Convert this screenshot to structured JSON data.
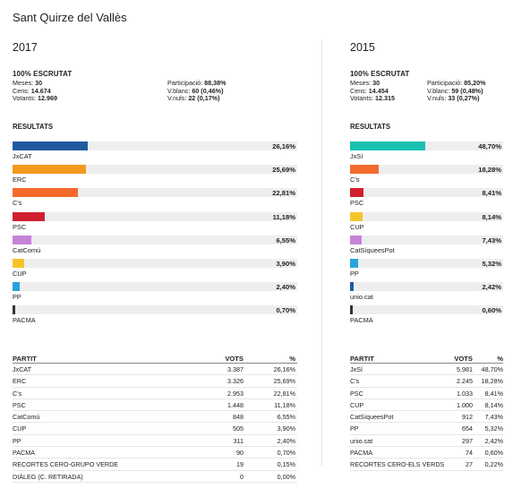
{
  "page": {
    "title": "Sant Quirze del Vallès"
  },
  "elections": [
    {
      "year": "2017",
      "scrutat": "100% ESCRUTAT",
      "stats_left": [
        {
          "label": "Meses: ",
          "value": "30"
        },
        {
          "label": "Cens: ",
          "value": "14.674"
        },
        {
          "label": "Votants: ",
          "value": "12.969"
        }
      ],
      "stats_right": [
        {
          "label": "Participació: ",
          "value": "88,38%"
        },
        {
          "label": "V.blanc: ",
          "value": "60 (0,46%)"
        },
        {
          "label": "V.nuls: ",
          "value": "22 (0,17%)"
        }
      ],
      "results_title": "RESULTATS",
      "bars": [
        {
          "party": "JxCAT",
          "pct": "26,16%",
          "value": 26.16,
          "color": "#1f5aa0"
        },
        {
          "party": "ERC",
          "pct": "25,69%",
          "value": 25.69,
          "color": "#f39a1e"
        },
        {
          "party": "C's",
          "pct": "22,81%",
          "value": 22.81,
          "color": "#f26b2c"
        },
        {
          "party": "PSC",
          "pct": "11,18%",
          "value": 11.18,
          "color": "#d02030"
        },
        {
          "party": "CatComú",
          "pct": "6,55%",
          "value": 6.55,
          "color": "#c583d8"
        },
        {
          "party": "CUP",
          "pct": "3,90%",
          "value": 3.9,
          "color": "#f5c42a"
        },
        {
          "party": "PP",
          "pct": "2,40%",
          "value": 2.4,
          "color": "#27a3dc"
        },
        {
          "party": "PACMA",
          "pct": "0,70%",
          "value": 0.7,
          "color": "#333333"
        }
      ],
      "table": {
        "headers": {
          "party": "PARTIT",
          "votes": "VOTS",
          "pct": "%"
        },
        "rows": [
          {
            "party": "JxCAT",
            "votes": "3.387",
            "pct": "26,16%"
          },
          {
            "party": "ERC",
            "votes": "3.326",
            "pct": "25,69%"
          },
          {
            "party": "C's",
            "votes": "2.953",
            "pct": "22,81%"
          },
          {
            "party": "PSC",
            "votes": "1.448",
            "pct": "11,18%"
          },
          {
            "party": "CatComú",
            "votes": "848",
            "pct": "6,55%"
          },
          {
            "party": "CUP",
            "votes": "505",
            "pct": "3,90%"
          },
          {
            "party": "PP",
            "votes": "311",
            "pct": "2,40%"
          },
          {
            "party": "PACMA",
            "votes": "90",
            "pct": "0,70%"
          },
          {
            "party": "RECORTES CERO-GRUPO VERDE",
            "votes": "19",
            "pct": "0,15%"
          },
          {
            "party": "DIÀLEG (C. RETIRADA)",
            "votes": "0",
            "pct": "0,00%"
          }
        ]
      }
    },
    {
      "year": "2015",
      "scrutat": "100% ESCRUTAT",
      "stats_left": [
        {
          "label": "Meses: ",
          "value": "30"
        },
        {
          "label": "Cens: ",
          "value": "14.454"
        },
        {
          "label": "Votants: ",
          "value": "12.315"
        }
      ],
      "stats_right": [
        {
          "label": "Participació: ",
          "value": "85,20%"
        },
        {
          "label": "V.blanc: ",
          "value": "59 (0,48%)"
        },
        {
          "label": "V.nuls: ",
          "value": "33 (0,27%)"
        }
      ],
      "results_title": "RESULTATS",
      "bars": [
        {
          "party": "JxSí",
          "pct": "48,70%",
          "value": 48.7,
          "color": "#18c0b0"
        },
        {
          "party": "C's",
          "pct": "18,28%",
          "value": 18.28,
          "color": "#f26b2c"
        },
        {
          "party": "PSC",
          "pct": "8,41%",
          "value": 8.41,
          "color": "#d02030"
        },
        {
          "party": "CUP",
          "pct": "8,14%",
          "value": 8.14,
          "color": "#f5c42a"
        },
        {
          "party": "CatSíqueesPot",
          "pct": "7,43%",
          "value": 7.43,
          "color": "#c583d8"
        },
        {
          "party": "PP",
          "pct": "5,32%",
          "value": 5.32,
          "color": "#27a3dc"
        },
        {
          "party": "unio.cat",
          "pct": "2,42%",
          "value": 2.42,
          "color": "#1f5aa0"
        },
        {
          "party": "PACMA",
          "pct": "0,60%",
          "value": 0.6,
          "color": "#333333"
        }
      ],
      "table": {
        "headers": {
          "party": "PARTIT",
          "votes": "VOTS",
          "pct": "%"
        },
        "rows": [
          {
            "party": "JxSí",
            "votes": "5.981",
            "pct": "48,70%"
          },
          {
            "party": "C's",
            "votes": "2.245",
            "pct": "18,28%"
          },
          {
            "party": "PSC",
            "votes": "1.033",
            "pct": "8,41%"
          },
          {
            "party": "CUP",
            "votes": "1.000",
            "pct": "8,14%"
          },
          {
            "party": "CatSíqueesPot",
            "votes": "912",
            "pct": "7,43%"
          },
          {
            "party": "PP",
            "votes": "654",
            "pct": "5,32%"
          },
          {
            "party": "unio.cat",
            "votes": "297",
            "pct": "2,42%"
          },
          {
            "party": "PACMA",
            "votes": "74",
            "pct": "0,60%"
          },
          {
            "party": "RECORTES CERO-ELS VERDS",
            "votes": "27",
            "pct": "0,22%"
          }
        ]
      }
    }
  ]
}
